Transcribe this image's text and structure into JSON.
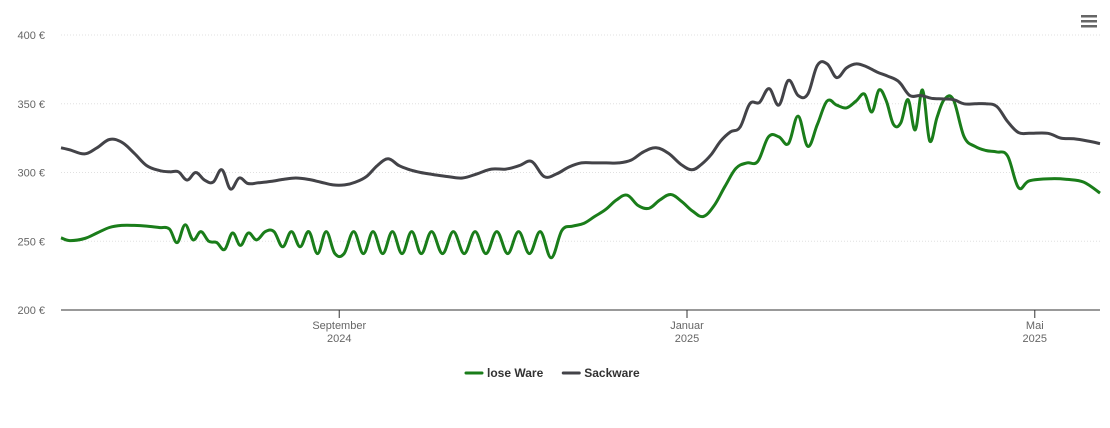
{
  "chart_data": {
    "type": "line",
    "series": [
      {
        "name": "lose Ware",
        "color": "#1a7d1a",
        "x": [
          "2024-05",
          "2024-05",
          "2024-06",
          "2024-06",
          "2024-06",
          "2024-06",
          "2024-06",
          "2024-06",
          "2024-06",
          "2024-07",
          "2024-07",
          "2024-07",
          "2024-07",
          "2024-07",
          "2024-07",
          "2024-07",
          "2024-07",
          "2024-07",
          "2024-07",
          "2024-07",
          "2024-08",
          "2024-08",
          "2024-08",
          "2024-08",
          "2024-08",
          "2024-08",
          "2024-08",
          "2024-08",
          "2024-08",
          "2024-08",
          "2024-09",
          "2024-09",
          "2024-09",
          "2024-09",
          "2024-09",
          "2024-09",
          "2024-09",
          "2024-09",
          "2024-09",
          "2024-10",
          "2024-10",
          "2024-10",
          "2024-10",
          "2024-10",
          "2024-10",
          "2024-10",
          "2024-10",
          "2024-11",
          "2024-11",
          "2024-11",
          "2024-11",
          "2024-11",
          "2024-11",
          "2024-11",
          "2024-11",
          "2024-12",
          "2024-12",
          "2024-12",
          "2024-12",
          "2024-12",
          "2024-12",
          "2024-12",
          "2024-12",
          "2025-01",
          "2025-01",
          "2025-01",
          "2025-01",
          "2025-01",
          "2025-01",
          "2025-01",
          "2025-01",
          "2025-02",
          "2025-02",
          "2025-02",
          "2025-02",
          "2025-02",
          "2025-02",
          "2025-02",
          "2025-02",
          "2025-02",
          "2025-03",
          "2025-03",
          "2025-03",
          "2025-03",
          "2025-03",
          "2025-03",
          "2025-03",
          "2025-03",
          "2025-03",
          "2025-03",
          "2025-03",
          "2025-03",
          "2025-04",
          "2025-04",
          "2025-04",
          "2025-04",
          "2025-04",
          "2025-04",
          "2025-04",
          "2025-04",
          "2025-05",
          "2025-05",
          "2025-05",
          "2025-05"
        ],
        "values": [
          252.5,
          250.5,
          252,
          256,
          260,
          261.5,
          261.5,
          261,
          260,
          259,
          249,
          262,
          251,
          257,
          250,
          249,
          244,
          256,
          247,
          256,
          251,
          257,
          257,
          246,
          257,
          246,
          257,
          241,
          257,
          241,
          241,
          257,
          241,
          257,
          241,
          257,
          241,
          257,
          241,
          257,
          241,
          257,
          241,
          257,
          241,
          257,
          241,
          257,
          241,
          257,
          238,
          258,
          261,
          263,
          268,
          273,
          280,
          283.5,
          276,
          274,
          280,
          284,
          279,
          272,
          268,
          276,
          290,
          303,
          307,
          308,
          326,
          326,
          321,
          341,
          319,
          335,
          352,
          349,
          347,
          352,
          357,
          344,
          360,
          352,
          335,
          336,
          353,
          331,
          360,
          323,
          340,
          353,
          353,
          326,
          319,
          316,
          315,
          312,
          289,
          294,
          295.5,
          295,
          293,
          285
        ]
      },
      {
        "name": "Sackware",
        "color": "#434348",
        "x": [
          "2024-05",
          "2024-05",
          "2024-06",
          "2024-06",
          "2024-06",
          "2024-06",
          "2024-06",
          "2024-06",
          "2024-06",
          "2024-07",
          "2024-07",
          "2024-07",
          "2024-07",
          "2024-07",
          "2024-07",
          "2024-07",
          "2024-07",
          "2024-07",
          "2024-07",
          "2024-08",
          "2024-08",
          "2024-08",
          "2024-08",
          "2024-08",
          "2024-08",
          "2024-08",
          "2024-09",
          "2024-09",
          "2024-09",
          "2024-09",
          "2024-09",
          "2024-09",
          "2024-09",
          "2024-09",
          "2024-10",
          "2024-10",
          "2024-10",
          "2024-10",
          "2024-10",
          "2024-10",
          "2024-11",
          "2024-11",
          "2024-11",
          "2024-11",
          "2024-11",
          "2024-11",
          "2024-11",
          "2024-12",
          "2024-12",
          "2024-12",
          "2024-12",
          "2024-12",
          "2024-12",
          "2024-12",
          "2025-01",
          "2025-01",
          "2025-01",
          "2025-01",
          "2025-01",
          "2025-01",
          "2025-01",
          "2025-01",
          "2025-01",
          "2025-02",
          "2025-02",
          "2025-02",
          "2025-02",
          "2025-02",
          "2025-02",
          "2025-02",
          "2025-02",
          "2025-02",
          "2025-03",
          "2025-03",
          "2025-03",
          "2025-03",
          "2025-03",
          "2025-03",
          "2025-03",
          "2025-03",
          "2025-04",
          "2025-04",
          "2025-04",
          "2025-04",
          "2025-04",
          "2025-04",
          "2025-04",
          "2025-04",
          "2025-05",
          "2025-05",
          "2025-05",
          "2025-05",
          "2025-05"
        ],
        "values": [
          318,
          316.5,
          313.5,
          318,
          324,
          322,
          314,
          305,
          301.5,
          300.5,
          300.5,
          294.5,
          300,
          294.5,
          293,
          302,
          288,
          296,
          292,
          292.5,
          293.5,
          295,
          296,
          295,
          293,
          291,
          291,
          293,
          297,
          305,
          310,
          305,
          302,
          300,
          298.5,
          297,
          296,
          299,
          302.5,
          302.5,
          305,
          308,
          297,
          299,
          304,
          307,
          307,
          307,
          307,
          309,
          315,
          318,
          314,
          306,
          302,
          306,
          313,
          323,
          329.5,
          333,
          350,
          351,
          361,
          349,
          367,
          356,
          357,
          378,
          379,
          369,
          376,
          379,
          377,
          373,
          370,
          366,
          356,
          356,
          354,
          353.5,
          353,
          350,
          350,
          350,
          348,
          337,
          329,
          328.5,
          328.5,
          325,
          324.5,
          323,
          321
        ]
      }
    ],
    "ylim": [
      200,
      400
    ],
    "yticks": [
      {
        "value": 200,
        "label": "200 €"
      },
      {
        "value": 250,
        "label": "250 €"
      },
      {
        "value": 300,
        "label": "300 €"
      },
      {
        "value": 350,
        "label": "350 €"
      },
      {
        "value": 400,
        "label": "400 €"
      }
    ],
    "xticks": [
      {
        "value": "2024-09",
        "label": [
          "September",
          "2024"
        ]
      },
      {
        "value": "2025-01",
        "label": [
          "Januar",
          "2025"
        ]
      },
      {
        "value": "2025-05",
        "label": [
          "Mai",
          "2025"
        ]
      }
    ],
    "grid": true,
    "legend": "bottom"
  }
}
